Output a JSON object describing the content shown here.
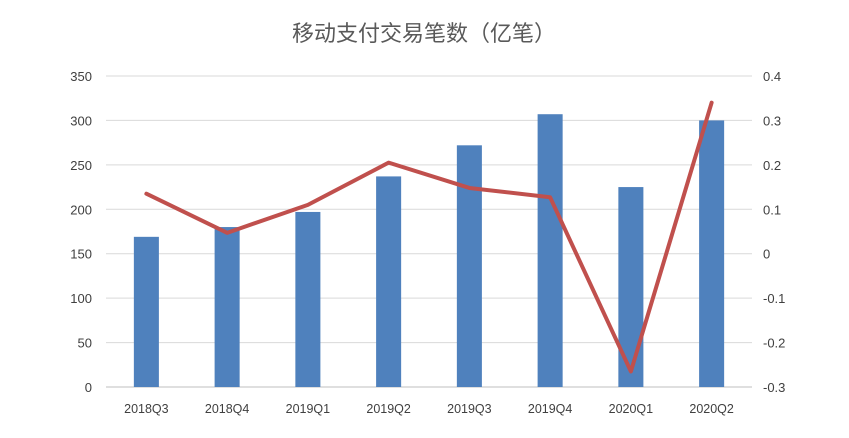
{
  "chart_data": {
    "type": "bar",
    "title": "移动支付交易笔数（亿笔）",
    "categories": [
      "2018Q3",
      "2018Q4",
      "2019Q1",
      "2019Q2",
      "2019Q3",
      "2019Q4",
      "2020Q1",
      "2020Q2"
    ],
    "series": [
      {
        "type": "bar",
        "axis": "left",
        "color": "#4F81BD",
        "values": [
          169,
          180,
          197,
          237,
          272,
          307,
          225,
          300
        ]
      },
      {
        "type": "line",
        "axis": "right",
        "color": "#C0504D",
        "values": [
          0.135,
          0.047,
          0.11,
          0.205,
          0.148,
          0.127,
          -0.265,
          0.34
        ]
      }
    ],
    "y_left": {
      "range": [
        0,
        350
      ],
      "ticks": [
        "0",
        "50",
        "100",
        "150",
        "200",
        "250",
        "300",
        "350"
      ]
    },
    "y_right": {
      "range": [
        -0.3,
        0.4
      ],
      "ticks": [
        "-0.3",
        "-0.2",
        "-0.1",
        "0",
        "0.1",
        "0.2",
        "0.3",
        "0.4"
      ]
    },
    "grid": true,
    "legend": "none"
  }
}
